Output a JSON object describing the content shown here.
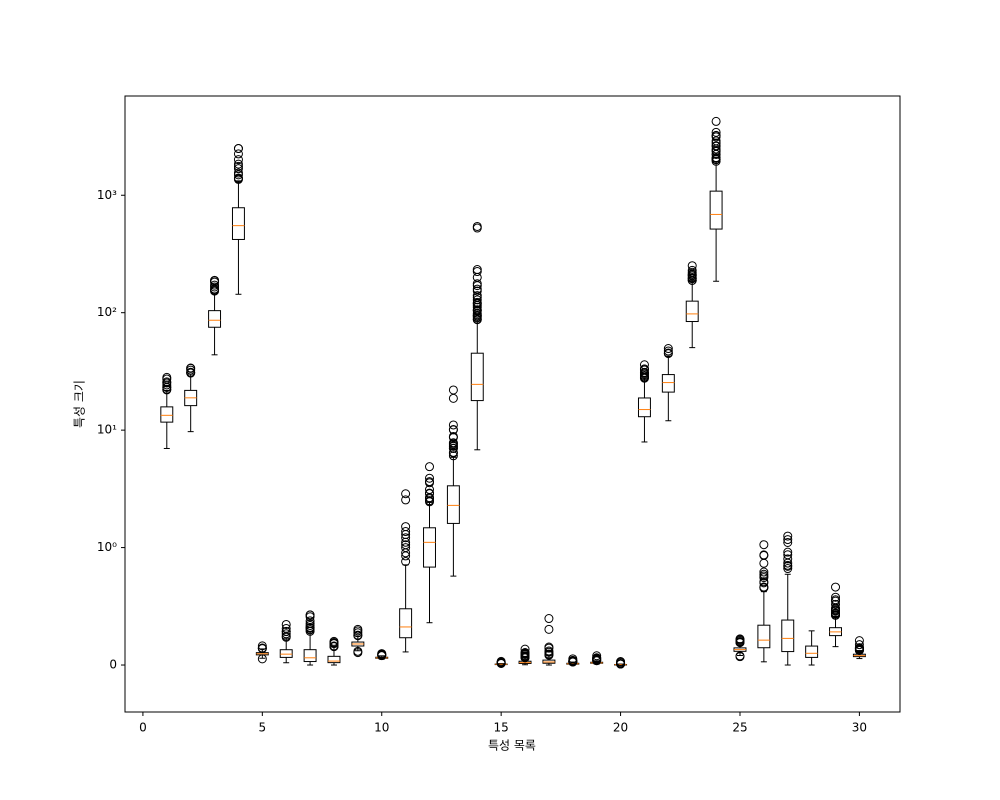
{
  "chart_data": {
    "type": "boxplot",
    "xlabel": "특성 목록",
    "ylabel": "특성 크기",
    "yscale": "symlog",
    "linthresh": 1,
    "xlim": [
      -0.75,
      31.7
    ],
    "xticks": [
      0,
      5,
      10,
      15,
      20,
      25,
      30
    ],
    "ylim": [
      -0.4,
      7000
    ],
    "yticks": [
      0,
      {
        "value": 1,
        "label": "10⁰"
      },
      {
        "value": 10,
        "label": "10¹"
      },
      {
        "value": 100,
        "label": "10²"
      },
      {
        "value": 1000,
        "label": "10³"
      }
    ],
    "box_color": "#000000",
    "median_color": "#ff7f0e",
    "x": [
      1,
      2,
      3,
      4,
      5,
      6,
      7,
      8,
      9,
      10,
      11,
      12,
      13,
      14,
      15,
      16,
      17,
      18,
      19,
      20,
      21,
      22,
      23,
      24,
      25,
      26,
      27,
      28,
      29,
      30
    ],
    "boxes": [
      {
        "whislo": 6.98,
        "q1": 11.7,
        "med": 13.37,
        "q3": 15.78,
        "whishi": 21.75,
        "fliers": [
          22.01,
          22.27,
          23.09,
          23.27,
          24.25,
          25.22,
          25.73,
          27.22,
          28.11
        ]
      },
      {
        "whislo": 9.71,
        "q1": 16.17,
        "med": 18.84,
        "q3": 21.8,
        "whishi": 29.97,
        "fliers": [
          30.62,
          30.72,
          31.12,
          32.47,
          33.56,
          33.81
        ]
      },
      {
        "whislo": 43.79,
        "q1": 75.17,
        "med": 86.24,
        "q3": 104.1,
        "whishi": 147.3,
        "fliers": [
          152.8,
          155.1,
          158.9,
          165.5,
          171.5,
          182.1,
          186.9,
          188.5
        ]
      },
      {
        "whislo": 143.5,
        "q1": 420.3,
        "med": 551.1,
        "q3": 782.7,
        "whishi": 1326,
        "fliers": [
          1364,
          1386,
          1404,
          1491,
          1546,
          1685,
          1761,
          1841,
          2010,
          2250,
          2499,
          2501
        ]
      },
      {
        "whislo": 0.0577,
        "q1": 0.0864,
        "med": 0.0959,
        "q3": 0.1053,
        "whishi": 0.1371,
        "fliers": [
          0.0526,
          0.1398,
          0.1425,
          0.1447,
          0.163
        ]
      },
      {
        "whislo": 0.0194,
        "q1": 0.0649,
        "med": 0.0926,
        "q3": 0.1304,
        "whishi": 0.2284,
        "fliers": [
          0.2363,
          0.2458,
          0.2665,
          0.2839,
          0.2867,
          0.3114,
          0.3454
        ]
      },
      {
        "whislo": 0,
        "q1": 0.0296,
        "med": 0.0615,
        "q3": 0.1307,
        "whishi": 0.281,
        "fliers": [
          0.2871,
          0.3001,
          0.313,
          0.3189,
          0.3201,
          0.3368,
          0.3523,
          0.3754,
          0.4108,
          0.4264,
          0.4268
        ]
      },
      {
        "whislo": 0,
        "q1": 0.0203,
        "med": 0.0335,
        "q3": 0.074,
        "whishi": 0.153,
        "fliers": [
          0.1562,
          0.1595,
          0.1604,
          0.162,
          0.1823,
          0.1845,
          0.1878,
          0.1913,
          0.2012
        ]
      },
      {
        "whislo": 0.1215,
        "q1": 0.1619,
        "med": 0.1792,
        "q3": 0.1957,
        "whishi": 0.2459,
        "fliers": [
          0.106,
          0.1167,
          0.2495,
          0.2548,
          0.2743,
          0.2906,
          0.304
        ]
      },
      {
        "whislo": 0.05,
        "q1": 0.0577,
        "med": 0.0615,
        "q3": 0.0661,
        "whishi": 0.0782,
        "fliers": [
          0.0797,
          0.0821,
          0.0844,
          0.0898,
          0.092,
          0.0974
        ]
      },
      {
        "whislo": 0.1115,
        "q1": 0.2324,
        "med": 0.3242,
        "q3": 0.4789,
        "whishi": 0.8529,
        "fliers": [
          0.8811,
          0.9289,
          0.9553,
          1.0,
          1.058,
          1.11,
          1.214,
          1.292,
          1.37,
          1.509,
          2.547,
          2.873
        ]
      },
      {
        "whislo": 0.3602,
        "q1": 0.8339,
        "med": 1.108,
        "q3": 1.474,
        "whishi": 2.426,
        "fliers": [
          2.454,
          2.508,
          2.612,
          2.664,
          2.878,
          2.91,
          3.12,
          3.568,
          3.647,
          3.896,
          4.885
        ]
      },
      {
        "whislo": 0.757,
        "q1": 1.606,
        "med": 2.287,
        "q3": 3.357,
        "whishi": 5.865,
        "fliers": [
          6.051,
          6.372,
          6.462,
          6.971,
          7.029,
          7.276,
          7.337,
          7.558,
          7.733,
          7.8,
          8.649,
          8.83,
          10.05,
          10.12,
          11.07,
          18.65,
          21.98
        ]
      },
      {
        "whislo": 6.802,
        "q1": 17.85,
        "med": 24.53,
        "q3": 45.19,
        "whishi": 86.2,
        "fliers": [
          87.17,
          87.87,
          90.47,
          93.54,
          93.99,
          96.05,
          98.81,
          103.6,
          104.9,
          106.0,
          111.4,
          115.2,
          118.8,
          120.0,
          122.3,
          128.7,
          134.8,
          139.9,
          153.1,
          158.7,
          170.0,
          176.5,
          199.7,
          224.1,
          233.0,
          525.6,
          542.2
        ]
      },
      {
        "whislo": 0.0017,
        "q1": 0.0052,
        "med": 0.0064,
        "q3": 0.0081,
        "whishi": 0.0126,
        "fliers": [
          0.0131,
          0.0149,
          0.0172,
          0.0208,
          0.0236,
          0.0311
        ]
      },
      {
        "whislo": 0.0023,
        "q1": 0.0131,
        "med": 0.0204,
        "q3": 0.0324,
        "whishi": 0.061,
        "fliers": [
          0.0613,
          0.0646,
          0.0715,
          0.0747,
          0.079,
          0.0896,
          0.095,
          0.1006,
          0.1064,
          0.1354
        ]
      },
      {
        "whislo": 0,
        "q1": 0.0151,
        "med": 0.0259,
        "q3": 0.042,
        "whishi": 0.0827,
        "fliers": [
          0.0834,
          0.0899,
          0.0939,
          0.1091,
          0.1197,
          0.1438,
          0.1535,
          0.3038,
          0.396
        ]
      },
      {
        "whislo": 0,
        "q1": 0.0076,
        "med": 0.0109,
        "q3": 0.0147,
        "whishi": 0.025,
        "fliers": [
          0.0256,
          0.0271,
          0.0278,
          0.0311,
          0.0325,
          0.0342,
          0.0401,
          0.0528
        ]
      },
      {
        "whislo": 0.0079,
        "q1": 0.0152,
        "med": 0.0187,
        "q3": 0.0235,
        "whishi": 0.0358,
        "fliers": [
          0.0368,
          0.0386,
          0.0419,
          0.0455,
          0.05,
          0.0555,
          0.0597,
          0.0615,
          0.079
        ]
      },
      {
        "whislo": 0.0009,
        "q1": 0.0022,
        "med": 0.0032,
        "q3": 0.0046,
        "whishi": 0.0082,
        "fliers": [
          0.0084,
          0.0087,
          0.0092,
          0.0095,
          0.0099,
          0.0124,
          0.0128,
          0.0222,
          0.0298
        ]
      },
      {
        "whislo": 7.93,
        "q1": 13.01,
        "med": 14.97,
        "q3": 18.79,
        "whishi": 27.32,
        "fliers": [
          27.66,
          28.11,
          28.19,
          28.4,
          29.17,
          30.0,
          30.67,
          30.75,
          31.01,
          32.49,
          33.12,
          33.13,
          36.04
        ]
      },
      {
        "whislo": 12.02,
        "q1": 21.08,
        "med": 25.41,
        "q3": 29.72,
        "whishi": 42.65,
        "fliers": [
          44.87,
          45.41,
          47.16,
          49.54
        ]
      },
      {
        "whislo": 50.41,
        "q1": 84.11,
        "med": 97.66,
        "q3": 125.4,
        "whishi": 187.3,
        "fliers": [
          188.0,
          188.5,
          195.0,
          195.9,
          199.5,
          205.7,
          206.8,
          211.5,
          214.0,
          220.8,
          229.3,
          251.2
        ]
      },
      {
        "whislo": 185.2,
        "q1": 515.3,
        "med": 686.5,
        "q3": 1084,
        "whishi": 1937,
        "fliers": [
          1946,
          2010,
          2022,
          2027,
          2081,
          2089,
          2227,
          2232,
          2360,
          2403,
          2477,
          2615,
          2642,
          2782,
          2906,
          3143,
          3216,
          3234,
          3432,
          4254
        ]
      },
      {
        "whislo": 0.0812,
        "q1": 0.1166,
        "med": 0.1313,
        "q3": 0.146,
        "whishi": 0.1902,
        "fliers": [
          0.0712,
          0.0774,
          0.1909,
          0.1918,
          0.1972,
          0.2006,
          0.2098,
          0.2184,
          0.2226
        ]
      },
      {
        "whislo": 0.0273,
        "q1": 0.1472,
        "med": 0.2119,
        "q3": 0.3391,
        "whishi": 0.6247,
        "fliers": [
          0.6577,
          0.659,
          0.6643,
          0.6997,
          0.709,
          0.7444,
          0.7584,
          0.7725,
          0.7917,
          0.8663,
          0.9327,
          0.9379,
          1.058
        ]
      },
      {
        "whislo": 0,
        "q1": 0.1145,
        "med": 0.2267,
        "q3": 0.3829,
        "whishi": 0.7727,
        "fliers": [
          0.8216,
          0.8402,
          0.8488,
          0.8681,
          0.9034,
          0.9387,
          0.9608,
          1.105,
          1.17,
          1.252
        ]
      },
      {
        "whislo": 0,
        "q1": 0.0649,
        "med": 0.0999,
        "q3": 0.1614,
        "whishi": 0.291,
        "fliers": []
      },
      {
        "whislo": 0.1565,
        "q1": 0.2504,
        "med": 0.2822,
        "q3": 0.3179,
        "whishi": 0.4151,
        "fliers": [
          0.4228,
          0.4245,
          0.4264,
          0.4366,
          0.4378,
          0.4432,
          0.459,
          0.4667,
          0.4761,
          0.4863,
          0.5166,
          0.544,
          0.5558,
          0.5774,
          0.6638
        ]
      },
      {
        "whislo": 0.055,
        "q1": 0.0715,
        "med": 0.08,
        "q3": 0.092,
        "whishi": 0.1233,
        "fliers": [
          0.124,
          0.1249,
          0.1284,
          0.1297,
          0.1364,
          0.1405,
          0.1431,
          0.1446,
          0.1486,
          0.1732,
          0.2075
        ]
      }
    ]
  }
}
